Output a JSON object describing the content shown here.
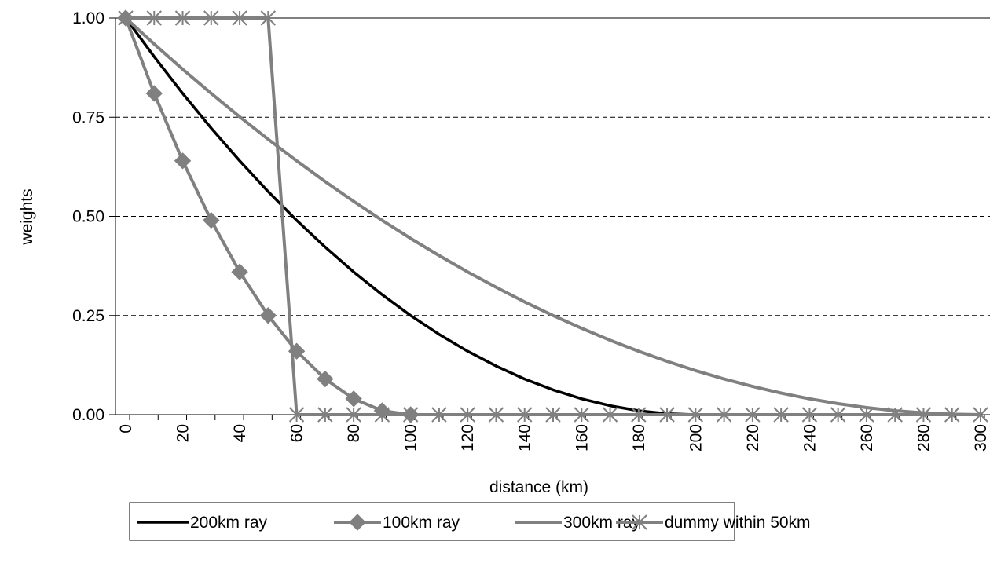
{
  "chart_data": {
    "type": "line",
    "xlabel": "distance (km)",
    "ylabel": "weights",
    "xlim": [
      0,
      300
    ],
    "ylim": [
      0,
      1
    ],
    "x_ticks": [
      "0",
      "20",
      "40",
      "60",
      "80",
      "100",
      "120",
      "140",
      "160",
      "180",
      "200",
      "220",
      "240",
      "260",
      "280",
      "300"
    ],
    "y_ticks": [
      "0.00",
      "0.25",
      "0.50",
      "0.75",
      "1.00"
    ],
    "grid": "horizontal dashed",
    "legend_position": "bottom",
    "series": [
      {
        "name": "200km ray",
        "color": "#000000",
        "marker": "none",
        "x": [
          0,
          10,
          20,
          30,
          40,
          50,
          60,
          70,
          80,
          90,
          100,
          110,
          120,
          130,
          140,
          150,
          160,
          170,
          180,
          190,
          200,
          210,
          220,
          230,
          240,
          250,
          260,
          270,
          280,
          290,
          300
        ],
        "values": [
          1.0,
          0.9025,
          0.81,
          0.7225,
          0.64,
          0.5625,
          0.49,
          0.4225,
          0.36,
          0.3025,
          0.25,
          0.2025,
          0.16,
          0.1225,
          0.09,
          0.0625,
          0.04,
          0.0225,
          0.01,
          0.0025,
          0,
          0,
          0,
          0,
          0,
          0,
          0,
          0,
          0,
          0,
          0
        ]
      },
      {
        "name": "100km ray",
        "color": "#808080",
        "marker": "diamond",
        "x": [
          0,
          10,
          20,
          30,
          40,
          50,
          60,
          70,
          80,
          90,
          100
        ],
        "values": [
          1.0,
          0.81,
          0.64,
          0.49,
          0.36,
          0.25,
          0.16,
          0.09,
          0.04,
          0.01,
          0
        ]
      },
      {
        "name": "300km ray",
        "color": "#808080",
        "marker": "none",
        "x": [
          0,
          10,
          20,
          30,
          40,
          50,
          60,
          70,
          80,
          90,
          100,
          110,
          120,
          130,
          140,
          150,
          160,
          170,
          180,
          190,
          200,
          210,
          220,
          230,
          240,
          250,
          260,
          270,
          280,
          290,
          300
        ],
        "values": [
          1.0,
          0.9344,
          0.8711,
          0.81,
          0.7511,
          0.6944,
          0.64,
          0.5878,
          0.5378,
          0.49,
          0.4444,
          0.4011,
          0.36,
          0.3211,
          0.2844,
          0.25,
          0.2178,
          0.1878,
          0.16,
          0.1344,
          0.1111,
          0.09,
          0.0711,
          0.0544,
          0.04,
          0.0278,
          0.0178,
          0.01,
          0.0044,
          0.0011,
          0
        ]
      },
      {
        "name": "dummy within 50km",
        "color": "#808080",
        "marker": "asterisk",
        "x": [
          0,
          10,
          20,
          30,
          40,
          50,
          60,
          70,
          80,
          90,
          100,
          110,
          120,
          130,
          140,
          150,
          160,
          170,
          180,
          190,
          200,
          210,
          220,
          230,
          240,
          250,
          260,
          270,
          280,
          290,
          300
        ],
        "values": [
          1,
          1,
          1,
          1,
          1,
          1,
          0,
          0,
          0,
          0,
          0,
          0,
          0,
          0,
          0,
          0,
          0,
          0,
          0,
          0,
          0,
          0,
          0,
          0,
          0,
          0,
          0,
          0,
          0,
          0,
          0
        ]
      }
    ]
  }
}
